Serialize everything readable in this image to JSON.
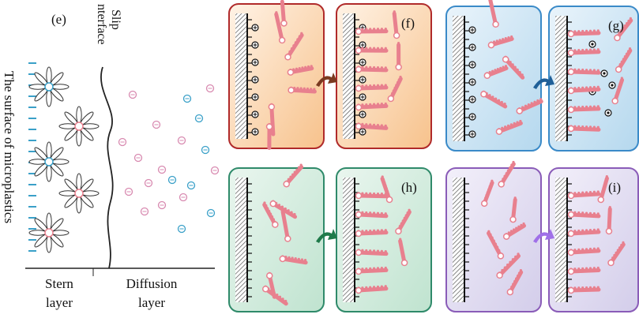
{
  "panel_e": {
    "label": "(e)",
    "slip_line1": "Slip",
    "slip_line2": "nterface",
    "surface_label": "The surface of microplastics",
    "stern_line1": "Stern",
    "stern_line2": "layer",
    "diffusion_line1": "Diffusion",
    "diffusion_line2": "layer"
  },
  "panels": [
    {
      "label": "(f)"
    },
    {
      "label": "(g)"
    },
    {
      "label": "(h)"
    },
    {
      "label": "(i)"
    }
  ]
}
